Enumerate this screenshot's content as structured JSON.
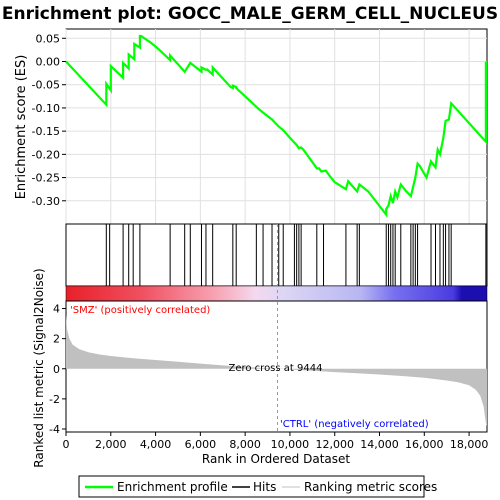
{
  "title": "Enrichment plot: GOCC_MALE_GERM_CELL_NUCLEUS",
  "colors": {
    "profile": "#00ff00",
    "hits": "#000000",
    "metric_fill": "#c0c0c0",
    "pos_label": "#ff0000",
    "neg_label": "#0000ff"
  },
  "chart_data": [
    {
      "type": "line",
      "name": "enrichment-profile",
      "ylabel": "Enrichment score (ES)",
      "xlim": [
        0,
        18800
      ],
      "ylim": [
        -0.35,
        0.07
      ],
      "yticks": [
        0.05,
        0.0,
        -0.05,
        -0.1,
        -0.15,
        -0.2,
        -0.25,
        -0.3
      ],
      "ytick_labels": [
        "0.05",
        "0.00",
        "-0.05",
        "-0.10",
        "-0.15",
        "-0.20",
        "-0.25",
        "-0.30"
      ],
      "grid": true,
      "x": [
        0,
        1800,
        1800,
        2000,
        2000,
        2550,
        2550,
        2800,
        2800,
        3050,
        3050,
        3300,
        3300,
        3350,
        3800,
        4100,
        4500,
        4650,
        4650,
        5300,
        5550,
        5550,
        6050,
        6050,
        6250,
        6300,
        6550,
        6550,
        7350,
        7450,
        7450,
        7600,
        7600,
        8000,
        8600,
        8800,
        9200,
        9500,
        9700,
        10100,
        10300,
        10400,
        10500,
        10600,
        11200,
        11300,
        11400,
        11600,
        11800,
        12000,
        12500,
        12600,
        13000,
        13100,
        13500,
        14300,
        14300,
        14400,
        14500,
        14600,
        14700,
        14800,
        14950,
        15200,
        15400,
        15500,
        15600,
        15700,
        15800,
        16100,
        16300,
        16500,
        16600,
        16700,
        16850,
        16950,
        17100,
        17200,
        18750,
        18750
      ],
      "y": [
        0.0,
        -0.093,
        -0.048,
        -0.062,
        -0.01,
        -0.035,
        -0.003,
        -0.015,
        0.015,
        0.005,
        0.038,
        0.03,
        0.055,
        0.055,
        0.04,
        0.028,
        0.01,
        0.003,
        0.013,
        -0.022,
        -0.003,
        -0.003,
        -0.022,
        -0.013,
        -0.018,
        -0.017,
        -0.028,
        -0.013,
        -0.055,
        -0.057,
        -0.052,
        -0.055,
        -0.057,
        -0.075,
        -0.102,
        -0.11,
        -0.125,
        -0.14,
        -0.148,
        -0.17,
        -0.18,
        -0.187,
        -0.185,
        -0.19,
        -0.23,
        -0.23,
        -0.237,
        -0.235,
        -0.248,
        -0.26,
        -0.275,
        -0.258,
        -0.28,
        -0.265,
        -0.28,
        -0.33,
        -0.318,
        -0.31,
        -0.29,
        -0.305,
        -0.28,
        -0.292,
        -0.265,
        -0.28,
        -0.29,
        -0.27,
        -0.25,
        -0.22,
        -0.225,
        -0.25,
        -0.215,
        -0.228,
        -0.19,
        -0.2,
        -0.165,
        -0.128,
        -0.125,
        -0.09,
        -0.173,
        0.0
      ]
    },
    {
      "type": "hits",
      "name": "hits",
      "xlim": [
        0,
        18800
      ],
      "x": [
        1800,
        1950,
        2550,
        2800,
        3000,
        3300,
        4650,
        5300,
        5550,
        6050,
        6250,
        6550,
        7450,
        7600,
        8500,
        8800,
        9200,
        9500,
        9700,
        10200,
        10300,
        10400,
        10500,
        11200,
        11500,
        12500,
        13000,
        13100,
        14300,
        14400,
        14500,
        14600,
        14700,
        14950,
        15400,
        15500,
        15600,
        15700,
        16300,
        16500,
        16700,
        16850,
        16950,
        17100,
        17200,
        18750
      ]
    },
    {
      "type": "area",
      "name": "ranked-list-metric",
      "xlabel": "Rank in Ordered Dataset",
      "ylabel": "Ranked list metric (Signal2Noise)",
      "xlim": [
        0,
        18800
      ],
      "ylim": [
        -4.2,
        4.5
      ],
      "yticks": [
        4,
        2,
        0,
        -2,
        -4
      ],
      "xticks": [
        0,
        2000,
        4000,
        6000,
        8000,
        10000,
        12000,
        14000,
        16000,
        18000
      ],
      "xtick_labels": [
        "0",
        "2,000",
        "4,000",
        "6,000",
        "8,000",
        "10,000",
        "12,000",
        "14,000",
        "16,000",
        "18,000"
      ],
      "x": [
        0,
        50,
        150,
        300,
        600,
        1000,
        1500,
        2000,
        3000,
        4000,
        5000,
        6000,
        7000,
        8000,
        9000,
        9444,
        10000,
        11000,
        12000,
        13000,
        14000,
        15000,
        16000,
        17000,
        17500,
        18000,
        18300,
        18500,
        18650,
        18750,
        18800
      ],
      "y": [
        3.6,
        2.6,
        2.0,
        1.6,
        1.3,
        1.1,
        0.95,
        0.85,
        0.7,
        0.58,
        0.46,
        0.34,
        0.22,
        0.12,
        0.04,
        0.0,
        -0.05,
        -0.13,
        -0.22,
        -0.3,
        -0.38,
        -0.48,
        -0.6,
        -0.78,
        -0.9,
        -1.1,
        -1.4,
        -1.8,
        -2.5,
        -3.6,
        -3.8
      ],
      "zero_cross": 9444,
      "zero_cross_label": "Zero cross at 9444",
      "pos_label": "'SMZ' (positively correlated)",
      "neg_label": "'CTRL' (negatively correlated)"
    }
  ],
  "legend": {
    "items": [
      {
        "label": "Enrichment profile",
        "color": "#00ff00",
        "style": "thick-line"
      },
      {
        "label": "Hits",
        "color": "#000000",
        "style": "line"
      },
      {
        "label": "Ranking metric scores",
        "color": "#c0c0c0",
        "style": "thin-line"
      }
    ]
  }
}
